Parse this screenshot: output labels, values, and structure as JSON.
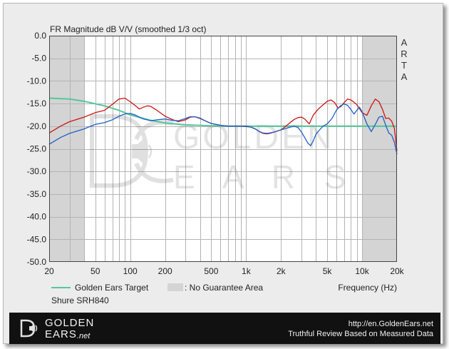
{
  "chart_data": {
    "type": "line",
    "title": "FR Magnitude dB V/V (smoothed 1/3 oct)",
    "watermark": "ARTA",
    "xlabel": "Frequency (Hz)",
    "x_scale": "log",
    "xlim": [
      20,
      20000
    ],
    "ylim": [
      -50,
      0
    ],
    "grid": true,
    "x_tick_labels": [
      {
        "value": 20,
        "label": "20"
      },
      {
        "value": 50,
        "label": "50"
      },
      {
        "value": 100,
        "label": "100"
      },
      {
        "value": 200,
        "label": "200"
      },
      {
        "value": 500,
        "label": "500"
      },
      {
        "value": 1000,
        "label": "1k"
      },
      {
        "value": 2000,
        "label": "2k"
      },
      {
        "value": 5000,
        "label": "5k"
      },
      {
        "value": 10000,
        "label": "10k"
      },
      {
        "value": 20000,
        "label": "20k"
      }
    ],
    "y_tick_labels": [
      {
        "value": 0,
        "label": "0.0"
      },
      {
        "value": -5,
        "label": "-5.0"
      },
      {
        "value": -10,
        "label": "-10.0"
      },
      {
        "value": -15,
        "label": "-15.0"
      },
      {
        "value": -20,
        "label": "-20.0"
      },
      {
        "value": -25,
        "label": "-25.0"
      },
      {
        "value": -30,
        "label": "-30.0"
      },
      {
        "value": -35,
        "label": "-35.0"
      },
      {
        "value": -40,
        "label": "-40.0"
      },
      {
        "value": -45,
        "label": "-45.0"
      },
      {
        "value": -50,
        "label": "-50.0"
      }
    ],
    "no_guarantee_regions": [
      [
        20,
        40
      ],
      [
        10000,
        20000
      ]
    ],
    "series": [
      {
        "name": "Golden Ears Target",
        "color": "#55c89a",
        "points": [
          [
            20,
            -13.8
          ],
          [
            30,
            -14.0
          ],
          [
            40,
            -14.5
          ],
          [
            60,
            -15.5
          ],
          [
            80,
            -16.5
          ],
          [
            100,
            -17.5
          ],
          [
            150,
            -18.7
          ],
          [
            200,
            -19.3
          ],
          [
            300,
            -19.7
          ],
          [
            500,
            -19.9
          ],
          [
            800,
            -20.0
          ],
          [
            1000,
            -20.0
          ],
          [
            2000,
            -20.0
          ],
          [
            5000,
            -20.0
          ],
          [
            10000,
            -20.0
          ],
          [
            20000,
            -20.0
          ]
        ]
      },
      {
        "name": "",
        "color": "#cc1414",
        "points": [
          [
            20,
            -21.5
          ],
          [
            25,
            -20.0
          ],
          [
            30,
            -19.0
          ],
          [
            40,
            -18.0
          ],
          [
            50,
            -17.0
          ],
          [
            60,
            -16.5
          ],
          [
            70,
            -15.2
          ],
          [
            80,
            -14.0
          ],
          [
            90,
            -13.8
          ],
          [
            100,
            -14.6
          ],
          [
            110,
            -15.4
          ],
          [
            120,
            -16.2
          ],
          [
            130,
            -15.8
          ],
          [
            140,
            -15.5
          ],
          [
            150,
            -15.6
          ],
          [
            170,
            -16.5
          ],
          [
            200,
            -17.8
          ],
          [
            230,
            -18.5
          ],
          [
            260,
            -19.0
          ],
          [
            300,
            -18.6
          ],
          [
            330,
            -18.0
          ],
          [
            360,
            -17.9
          ],
          [
            400,
            -18.3
          ],
          [
            450,
            -18.9
          ],
          [
            500,
            -19.4
          ],
          [
            600,
            -19.8
          ],
          [
            700,
            -20.0
          ],
          [
            800,
            -20.0
          ],
          [
            900,
            -20.0
          ],
          [
            1000,
            -20.1
          ],
          [
            1100,
            -20.2
          ],
          [
            1200,
            -20.6
          ],
          [
            1300,
            -21.2
          ],
          [
            1400,
            -21.6
          ],
          [
            1500,
            -21.7
          ],
          [
            1600,
            -21.6
          ],
          [
            1800,
            -21.2
          ],
          [
            2000,
            -20.8
          ],
          [
            2200,
            -20.0
          ],
          [
            2400,
            -19.2
          ],
          [
            2600,
            -18.5
          ],
          [
            2800,
            -18.1
          ],
          [
            3000,
            -18.0
          ],
          [
            3200,
            -18.4
          ],
          [
            3500,
            -19.5
          ],
          [
            3800,
            -17.5
          ],
          [
            4200,
            -16.2
          ],
          [
            4600,
            -15.3
          ],
          [
            5000,
            -14.5
          ],
          [
            5400,
            -14.2
          ],
          [
            5800,
            -14.8
          ],
          [
            6200,
            -16.0
          ],
          [
            6600,
            -15.6
          ],
          [
            7000,
            -14.8
          ],
          [
            7500,
            -14.0
          ],
          [
            8000,
            -14.2
          ],
          [
            8500,
            -14.7
          ],
          [
            9000,
            -15.2
          ],
          [
            10000,
            -17.0
          ],
          [
            11000,
            -17.6
          ],
          [
            12000,
            -15.5
          ],
          [
            13000,
            -14.0
          ],
          [
            14000,
            -14.6
          ],
          [
            15000,
            -16.3
          ],
          [
            16000,
            -18.3
          ],
          [
            17000,
            -18.2
          ],
          [
            18000,
            -18.9
          ],
          [
            19000,
            -20.5
          ],
          [
            20000,
            -25.5
          ]
        ]
      },
      {
        "name": "",
        "color": "#1f5fc8",
        "points": [
          [
            20,
            -24.0
          ],
          [
            25,
            -22.5
          ],
          [
            30,
            -21.6
          ],
          [
            40,
            -20.6
          ],
          [
            50,
            -19.6
          ],
          [
            60,
            -19.2
          ],
          [
            70,
            -18.6
          ],
          [
            80,
            -17.8
          ],
          [
            90,
            -17.3
          ],
          [
            100,
            -17.2
          ],
          [
            110,
            -17.5
          ],
          [
            120,
            -18.0
          ],
          [
            130,
            -18.4
          ],
          [
            140,
            -18.6
          ],
          [
            150,
            -18.8
          ],
          [
            170,
            -18.6
          ],
          [
            200,
            -18.4
          ],
          [
            230,
            -18.7
          ],
          [
            260,
            -18.8
          ],
          [
            300,
            -18.3
          ],
          [
            330,
            -17.9
          ],
          [
            360,
            -17.9
          ],
          [
            400,
            -18.2
          ],
          [
            450,
            -18.9
          ],
          [
            500,
            -19.4
          ],
          [
            600,
            -19.8
          ],
          [
            700,
            -20.0
          ],
          [
            800,
            -20.0
          ],
          [
            900,
            -20.0
          ],
          [
            1000,
            -20.0
          ],
          [
            1100,
            -20.2
          ],
          [
            1200,
            -20.6
          ],
          [
            1300,
            -21.2
          ],
          [
            1400,
            -21.5
          ],
          [
            1500,
            -21.6
          ],
          [
            1600,
            -21.5
          ],
          [
            1800,
            -21.2
          ],
          [
            2000,
            -20.8
          ],
          [
            2200,
            -20.5
          ],
          [
            2400,
            -20.2
          ],
          [
            2600,
            -20.0
          ],
          [
            2800,
            -20.3
          ],
          [
            3000,
            -21.3
          ],
          [
            3200,
            -22.5
          ],
          [
            3400,
            -23.7
          ],
          [
            3600,
            -24.3
          ],
          [
            3800,
            -23.2
          ],
          [
            4000,
            -21.8
          ],
          [
            4300,
            -20.8
          ],
          [
            4600,
            -20.0
          ],
          [
            5000,
            -19.5
          ],
          [
            5500,
            -18.3
          ],
          [
            6000,
            -16.5
          ],
          [
            6500,
            -15.5
          ],
          [
            7000,
            -15.1
          ],
          [
            7500,
            -15.4
          ],
          [
            8000,
            -16.3
          ],
          [
            8500,
            -17.3
          ],
          [
            9000,
            -16.5
          ],
          [
            9500,
            -15.8
          ],
          [
            10000,
            -16.8
          ],
          [
            11000,
            -19.5
          ],
          [
            12000,
            -21.2
          ],
          [
            13000,
            -19.6
          ],
          [
            14000,
            -18.0
          ],
          [
            15000,
            -17.8
          ],
          [
            16000,
            -19.8
          ],
          [
            17000,
            -21.5
          ],
          [
            18000,
            -22.0
          ],
          [
            19000,
            -23.6
          ],
          [
            20000,
            -26.2
          ]
        ]
      }
    ]
  },
  "legend": {
    "target_label": "Golden Ears Target",
    "no_guarantee_label": ": No Guarantee Area",
    "product_label": "Shure SRH840"
  },
  "watermark_logo": {
    "line1": "GOLDEN",
    "line2": "E A R S"
  },
  "footer": {
    "brand_line1": "GOLDEN",
    "brand_line2": "EARS",
    "brand_suffix": ".net",
    "url": "http://en.GoldenEars.net",
    "tagline": "Truthful Review Based on Measured Data"
  },
  "colors": {
    "plot_background": "#ffffff",
    "no_guarantee_fill": "#d4d4d4",
    "grid": "#b4b4b4",
    "frame_background": "#ececec",
    "footer_background": "#111111"
  }
}
